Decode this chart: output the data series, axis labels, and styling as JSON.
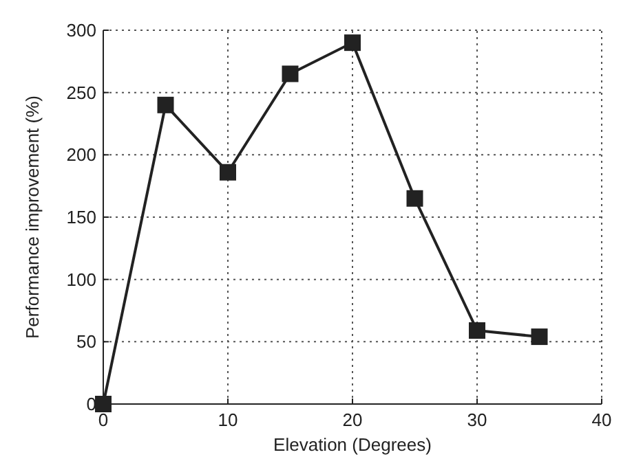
{
  "chart_data": {
    "type": "line",
    "xlabel": "Elevation (Degrees)",
    "ylabel": "Performance improvement (%)",
    "x": [
      0,
      5,
      10,
      15,
      20,
      25,
      30,
      35
    ],
    "series": [
      {
        "color": "#222222",
        "values": [
          0,
          240,
          186,
          265,
          290,
          165,
          59,
          54
        ]
      }
    ],
    "xlim": [
      0,
      40
    ],
    "xticks": [
      0,
      10,
      20,
      30,
      40
    ],
    "ylim": [
      0,
      300
    ],
    "yticks": [
      0,
      50,
      100,
      150,
      200,
      250,
      300
    ],
    "grid": true,
    "marker": "square",
    "line_style": "solid"
  }
}
